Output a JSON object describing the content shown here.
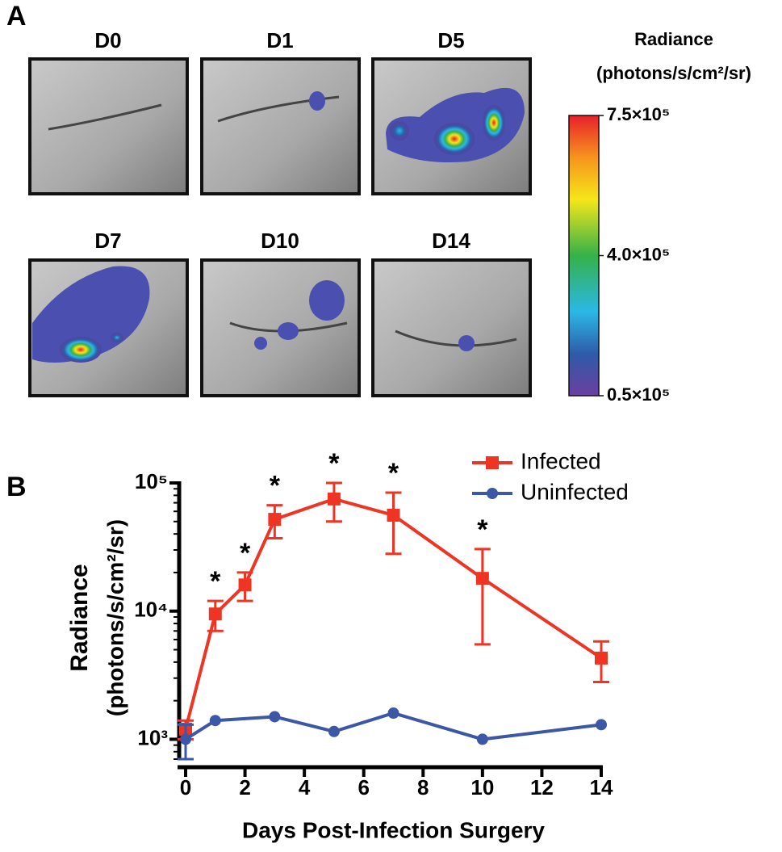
{
  "panel_a": {
    "label": "A",
    "images": [
      {
        "label": "D0"
      },
      {
        "label": "D1"
      },
      {
        "label": "D5"
      },
      {
        "label": "D7"
      },
      {
        "label": "D10"
      },
      {
        "label": "D14"
      }
    ],
    "colorbar": {
      "title": "Radiance",
      "unit": "(photons/s/cm²/sr)",
      "lim": [
        50000,
        750000
      ],
      "ticks": [
        {
          "value": 750000,
          "label": "7.5×10⁵"
        },
        {
          "value": 400000,
          "label": "4.0×10⁵"
        },
        {
          "value": 50000,
          "label": "0.5×10⁵"
        }
      ]
    }
  },
  "chart_data": {
    "type": "line",
    "panel_label": "B",
    "x_label": "Days Post-Infection Surgery",
    "y_label": [
      "Radiance",
      "(photons/s/cm²/sr)"
    ],
    "xlim": [
      0,
      14
    ],
    "xticks": [
      0,
      2,
      4,
      6,
      8,
      10,
      12,
      14
    ],
    "ylim": [
      700,
      100000
    ],
    "log_y": true,
    "yticks": [
      {
        "value": 1000,
        "label": "10³"
      },
      {
        "value": 10000,
        "label": "10⁴"
      },
      {
        "value": 100000,
        "label": "10⁵"
      }
    ],
    "legend": "upper right",
    "series": [
      {
        "name": "Infected",
        "color": "#ee3524",
        "marker": "square",
        "x": [
          0,
          1,
          2,
          3,
          5,
          7,
          10,
          14
        ],
        "values": [
          1200,
          9500,
          16000,
          52000,
          75000,
          56000,
          18000,
          4300
        ],
        "errors": [
          200,
          2500,
          4000,
          15000,
          25000,
          28000,
          12500,
          1500
        ]
      },
      {
        "name": "Uninfected",
        "color": "#3b57a6",
        "marker": "circle",
        "x": [
          0,
          1,
          3,
          5,
          7,
          10,
          14
        ],
        "values": [
          1000,
          1400,
          1500,
          1150,
          1600,
          1000,
          1300
        ],
        "errors": [
          300,
          0,
          0,
          0,
          0,
          0,
          0
        ]
      }
    ],
    "annotations": [
      {
        "x": 1,
        "text": "*"
      },
      {
        "x": 2,
        "text": "*"
      },
      {
        "x": 3,
        "text": "*"
      },
      {
        "x": 5,
        "text": "*"
      },
      {
        "x": 7,
        "text": "*"
      },
      {
        "x": 10,
        "text": "*"
      }
    ]
  }
}
